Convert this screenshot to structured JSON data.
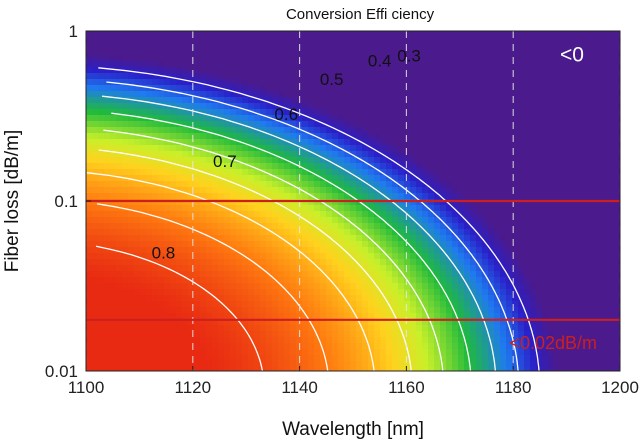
{
  "chart_data": {
    "type": "heatmap",
    "title": "Conversion Effi  ciency",
    "xlabel": "Wavelength [nm]",
    "ylabel": "Fiber loss [dB/m]",
    "xlim": [
      1100,
      1200
    ],
    "ylim": [
      0.01,
      1
    ],
    "yscale": "log",
    "x_ticks": [
      "1100",
      "1120",
      "1140",
      "1160",
      "1180",
      "1200"
    ],
    "y_ticks": [
      {
        "value": 1,
        "label": "1"
      },
      {
        "value": 0.1,
        "label": "0.1"
      },
      {
        "value": 0.01,
        "label": "0.01"
      }
    ],
    "grid": "vertical dashed",
    "colormap": [
      "#e82a12",
      "#ff7a10",
      "#ffd21e",
      "#c8f02a",
      "#1fba3c",
      "#1f7af0",
      "#2a1fc8",
      "#4b1a8c"
    ],
    "contour_levels": [
      0.8,
      0.7,
      0.6,
      0.5,
      0.4,
      0.3,
      0.2,
      0.1,
      0
    ],
    "contour_labels": [
      {
        "text": "0.8",
        "x": 1114.5,
        "y": 0.046
      },
      {
        "text": "0.7",
        "x": 1126,
        "y": 0.158
      },
      {
        "text": "0.6",
        "x": 1137.5,
        "y": 0.3
      },
      {
        "text": "0.5",
        "x": 1146,
        "y": 0.48
      },
      {
        "text": "0.4",
        "x": 1155,
        "y": 0.62
      },
      {
        "text": "0.3",
        "x": 1160.5,
        "y": 0.66
      }
    ],
    "reference_lines": [
      {
        "axis": "y",
        "value": 0.1,
        "color": "#cc1f1f"
      },
      {
        "axis": "y",
        "value": 0.02,
        "color": "#cc1f1f"
      }
    ],
    "annotations": [
      {
        "text": "<0",
        "x": 1191,
        "y": 0.66,
        "color": "#ffffff"
      },
      {
        "text": "<0.02dB/m",
        "x": 1187.5,
        "y": 0.0135,
        "color": "#cc1f1f"
      }
    ]
  }
}
